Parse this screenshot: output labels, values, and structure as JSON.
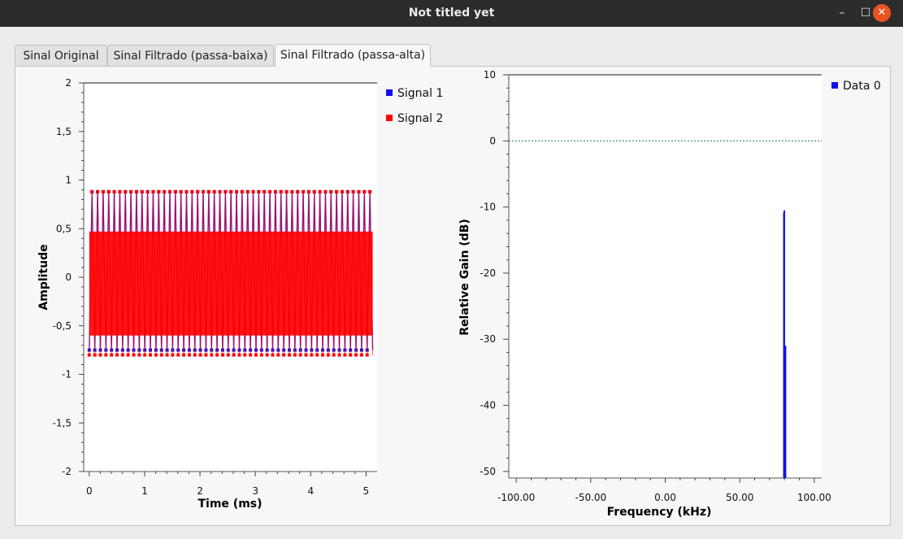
{
  "window": {
    "title": "Not titled yet",
    "minimize_glyph": "–",
    "maximize_glyph": "☐",
    "close_glyph": "✕"
  },
  "tabs": [
    {
      "label": "Sinal Original",
      "active": false
    },
    {
      "label": "Sinal Filtrado (passa-baixa)",
      "active": false
    },
    {
      "label": "Sinal Filtrado (passa-alta)",
      "active": true
    }
  ],
  "chart_data": [
    {
      "type": "line",
      "xlabel": "Time (ms)",
      "ylabel": "Amplitude",
      "xlim": [
        -0.1,
        5.2
      ],
      "ylim": [
        -2,
        2
      ],
      "x_ticks": [
        0,
        1,
        2,
        3,
        4,
        5
      ],
      "x_tick_labels": [
        "0",
        "1",
        "2",
        "3",
        "4",
        "5"
      ],
      "y_ticks": [
        2,
        1.5,
        1,
        0.5,
        0,
        -0.5,
        -1,
        -1.5,
        -2
      ],
      "y_tick_labels": [
        "2",
        "1,5",
        "1",
        "0,5",
        "0",
        "-0,5",
        "-1",
        "-1,5",
        "-2"
      ],
      "legend_position": "top-right",
      "series": [
        {
          "name": "Signal 1",
          "color": "#1010ee",
          "x_range": [
            0,
            5.12
          ],
          "max": 0.88,
          "min": -0.75,
          "oscillation_period_ms": 0.1
        },
        {
          "name": "Signal 2",
          "color": "#ff0000",
          "x_range": [
            0,
            5.12
          ],
          "max": 0.88,
          "min": -0.8,
          "oscillation_period_ms": 0.1
        }
      ]
    },
    {
      "type": "line",
      "xlabel": "Frequency (kHz)",
      "ylabel": "Relative Gain (dB)",
      "xlim": [
        -105,
        105
      ],
      "ylim": [
        -51,
        10
      ],
      "x_ticks": [
        -100,
        -50,
        0,
        50,
        100
      ],
      "x_tick_labels": [
        "-100.00",
        "-50.00",
        "0.00",
        "50.00",
        "100.00"
      ],
      "y_ticks": [
        10,
        0,
        -10,
        -20,
        -30,
        -40,
        -50
      ],
      "y_tick_labels": [
        "10",
        "0",
        "-10",
        "-20",
        "-30",
        "-40",
        "-50"
      ],
      "legend_position": "top-right",
      "series": [
        {
          "name": "Data 0",
          "color": "#1010ee",
          "x": [
            79.5,
            79.5,
            80,
            80,
            80.8,
            80.8
          ],
          "y": [
            -51,
            -11,
            -10.5,
            -51,
            -31,
            -51
          ]
        }
      ],
      "reference_line": {
        "y": 0,
        "color": "#008080"
      }
    }
  ]
}
